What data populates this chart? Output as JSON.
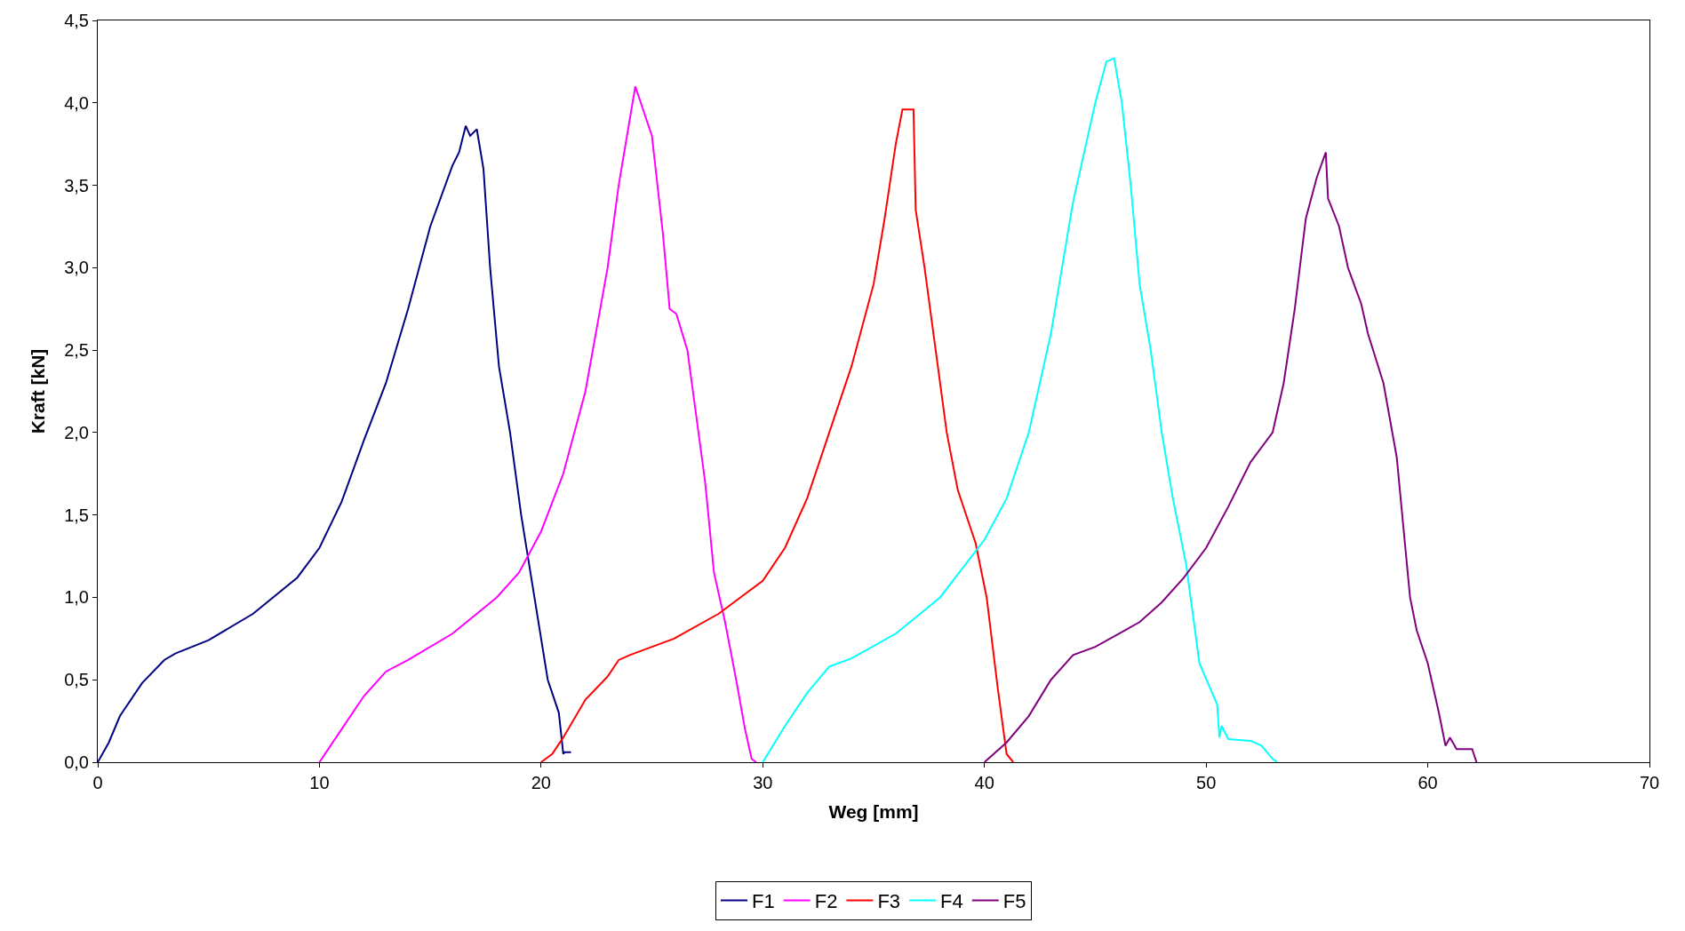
{
  "chart_data": {
    "type": "line",
    "xlabel": "Weg [mm]",
    "ylabel": "Kraft [kN]",
    "xlim": [
      0,
      70
    ],
    "xticks": [
      0,
      10,
      20,
      30,
      40,
      50,
      60,
      70
    ],
    "ylim": [
      0,
      4.5
    ],
    "yticks": [
      {
        "value": 0,
        "label": "0,0"
      },
      {
        "value": 0.5,
        "label": "0,5"
      },
      {
        "value": 1,
        "label": "1,0"
      },
      {
        "value": 1.5,
        "label": "1,5"
      },
      {
        "value": 2,
        "label": "2,0"
      },
      {
        "value": 2.5,
        "label": "2,5"
      },
      {
        "value": 3,
        "label": "3,0"
      },
      {
        "value": 3.5,
        "label": "3,5"
      },
      {
        "value": 4,
        "label": "4,0"
      },
      {
        "value": 4.5,
        "label": "4,5"
      }
    ],
    "legend": "bottom",
    "marker": "none",
    "line_style": "solid",
    "series": [
      {
        "name": "F1",
        "color": "#000080",
        "x": [
          0,
          0.5,
          1,
          2,
          3,
          3.5,
          5,
          7,
          9,
          10,
          11,
          12,
          13,
          14,
          15,
          16,
          16.3,
          16.6,
          16.8,
          17.1,
          17.4,
          17.7,
          18.1,
          18.6,
          19.1,
          19.7,
          20.3,
          20.8,
          21.0,
          21.05,
          21.35
        ],
        "values": [
          0,
          0.12,
          0.28,
          0.48,
          0.62,
          0.66,
          0.74,
          0.9,
          1.12,
          1.3,
          1.58,
          1.95,
          2.3,
          2.75,
          3.25,
          3.62,
          3.7,
          3.86,
          3.8,
          3.84,
          3.6,
          3.0,
          2.4,
          2.0,
          1.5,
          1.0,
          0.5,
          0.3,
          0.05,
          0.06,
          0.06
        ]
      },
      {
        "name": "F2",
        "color": "#ff00ff",
        "x": [
          10,
          11,
          12,
          13,
          14,
          16,
          18,
          19,
          20,
          21,
          22,
          23,
          23.5,
          24.25,
          25,
          25.5,
          25.8,
          26.1,
          26.6,
          27,
          27.4,
          27.8,
          28.3,
          28.8,
          29.2,
          29.5,
          29.7
        ],
        "values": [
          0,
          0.2,
          0.4,
          0.55,
          0.62,
          0.78,
          1.0,
          1.15,
          1.4,
          1.75,
          2.25,
          3.0,
          3.5,
          4.1,
          3.8,
          3.2,
          2.75,
          2.72,
          2.5,
          2.1,
          1.7,
          1.15,
          0.85,
          0.5,
          0.2,
          0.02,
          0
        ]
      },
      {
        "name": "F3",
        "color": "#ff0000",
        "x": [
          20,
          20.5,
          21,
          22,
          23,
          23.5,
          24,
          26,
          28,
          30,
          31,
          32,
          33,
          34,
          35,
          35.5,
          36,
          36.3,
          36.8,
          36.9,
          37.3,
          37.7,
          38.3,
          38.8,
          39.6,
          40.1,
          40.6,
          41.0,
          41.3
        ],
        "values": [
          0,
          0.05,
          0.15,
          0.38,
          0.52,
          0.62,
          0.65,
          0.75,
          0.9,
          1.1,
          1.3,
          1.6,
          2.0,
          2.4,
          2.9,
          3.3,
          3.75,
          3.96,
          3.96,
          3.35,
          3.0,
          2.6,
          2.0,
          1.65,
          1.33,
          1.0,
          0.45,
          0.05,
          0
        ]
      },
      {
        "name": "F4",
        "color": "#00ffff",
        "x": [
          30,
          31,
          32,
          33,
          34,
          36,
          38,
          40,
          41,
          42,
          43,
          44,
          45,
          45.5,
          45.85,
          46.2,
          46.6,
          47,
          47.5,
          48,
          48.5,
          49.1,
          49.7,
          50.5,
          50.6,
          50.7,
          51,
          52,
          52.5,
          53,
          53.2
        ],
        "values": [
          0,
          0.22,
          0.42,
          0.58,
          0.63,
          0.78,
          1.0,
          1.35,
          1.6,
          2.0,
          2.6,
          3.4,
          4.0,
          4.25,
          4.27,
          4.0,
          3.5,
          2.9,
          2.5,
          2.0,
          1.6,
          1.2,
          0.6,
          0.35,
          0.15,
          0.22,
          0.14,
          0.13,
          0.1,
          0.02,
          0
        ]
      },
      {
        "name": "F5",
        "color": "#800080",
        "x": [
          40,
          41,
          42,
          43,
          44,
          45,
          47,
          48,
          49,
          50,
          51,
          52,
          53,
          53.5,
          54,
          54.5,
          55,
          55.4,
          55.5,
          56,
          56.4,
          57,
          57.3,
          58,
          58.6,
          59.2,
          59.5,
          60,
          60.5,
          60.8,
          61,
          61.3,
          62,
          62.2
        ],
        "values": [
          0,
          0.12,
          0.28,
          0.5,
          0.65,
          0.7,
          0.85,
          0.97,
          1.12,
          1.3,
          1.55,
          1.82,
          2.0,
          2.3,
          2.75,
          3.3,
          3.55,
          3.7,
          3.42,
          3.25,
          3.0,
          2.78,
          2.6,
          2.3,
          1.85,
          1.0,
          0.8,
          0.6,
          0.3,
          0.1,
          0.15,
          0.08,
          0.08,
          0
        ]
      }
    ]
  }
}
